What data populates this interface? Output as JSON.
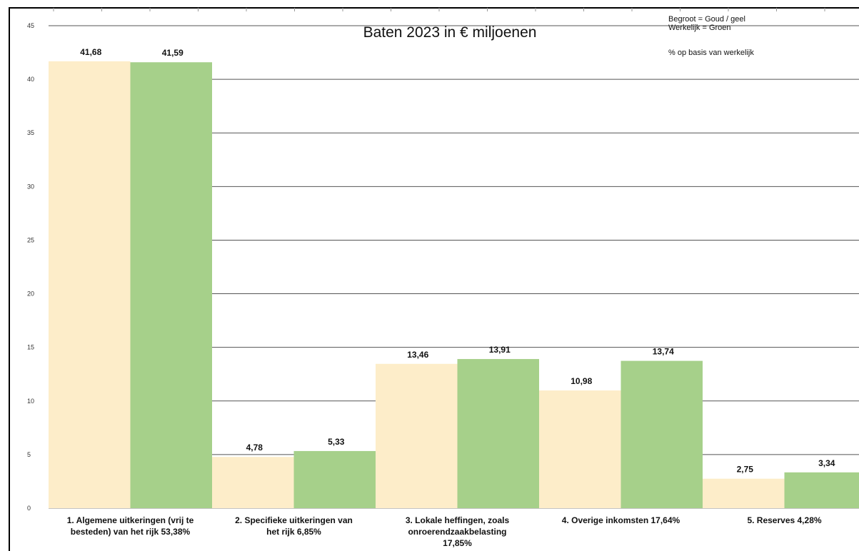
{
  "chart_data": {
    "type": "bar",
    "title": "Baten 2023 in € miljoenen",
    "notes": [
      "Begroot = Goud / geel",
      "Werkelijk = Groen",
      "% op basis van werkelijk"
    ],
    "categories": [
      [
        "1. Algemene uitkeringen (vrij te",
        "besteden) van het rijk 53,38%"
      ],
      [
        "2. Specifieke uitkeringen van",
        "het rijk  6,85%"
      ],
      [
        "3. Lokale heffingen, zoals",
        "onroerendzaakbelasting",
        "17,85%"
      ],
      [
        "4. Overige inkomsten  17,64%"
      ],
      [
        "5. Reserves  4,28%"
      ]
    ],
    "series": [
      {
        "values": [
          41.68,
          4.78,
          13.46,
          10.98,
          2.75
        ],
        "labels": [
          "41,68",
          "4,78",
          "13,46",
          "10,98",
          "2,75"
        ],
        "color": "#fdedc9"
      },
      {
        "values": [
          41.59,
          5.33,
          13.91,
          13.74,
          3.34
        ],
        "labels": [
          "41,59",
          "5,33",
          "13,91",
          "13,74",
          "3,34"
        ],
        "color": "#a6d08a"
      }
    ],
    "y_ticks": [
      "0",
      "5",
      "10",
      "15",
      "20",
      "25",
      "30",
      "35",
      "40",
      "45"
    ],
    "ylim": [
      0,
      45
    ],
    "grid": true,
    "legend": "none"
  }
}
